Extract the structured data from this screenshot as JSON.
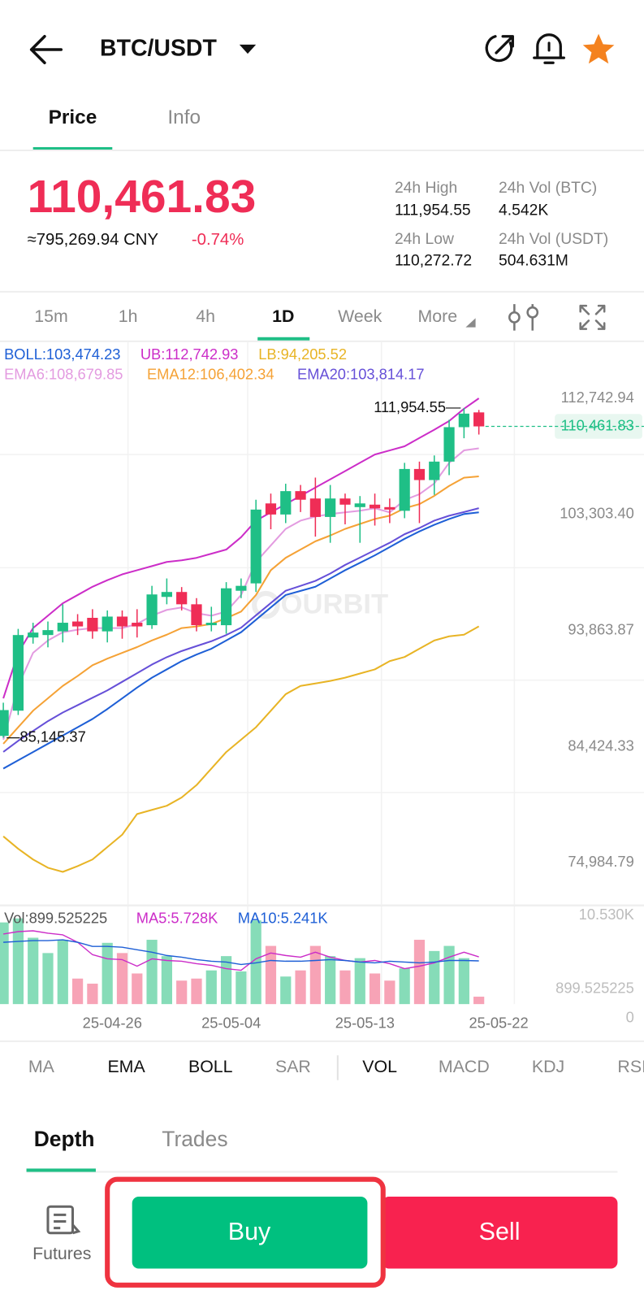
{
  "header": {
    "symbol": "BTC/USDT"
  },
  "tabs": [
    "Price",
    "Info"
  ],
  "ticker": {
    "price": "110,461.83",
    "cny": "≈795,269.94 CNY",
    "change": "-0.74%",
    "stats": [
      {
        "label": "24h High",
        "value": "111,954.55"
      },
      {
        "label": "24h Vol (BTC)",
        "value": "4.542K"
      },
      {
        "label": "24h Low",
        "value": "110,272.72"
      },
      {
        "label": "24h Vol (USDT)",
        "value": "504.631M"
      }
    ]
  },
  "timeframes": [
    "15m",
    "1h",
    "4h",
    "1D",
    "Week",
    "More"
  ],
  "watermark": "OURBIT",
  "chart_data": [
    {
      "type": "candlestick",
      "open": [
        85300,
        87350,
        93300,
        93500,
        93800,
        94600,
        94900,
        93800,
        95000,
        94500,
        94300,
        96600,
        97000,
        96000,
        94300,
        94300,
        97100,
        97700,
        104200,
        103300,
        105200,
        104600,
        103100,
        104600,
        103900,
        104100,
        103900,
        103600,
        107000,
        106100,
        107600,
        110400,
        111600,
        null
      ],
      "high": [
        88000,
        94000,
        94500,
        94600,
        96000,
        95200,
        95600,
        95500,
        95500,
        95600,
        97500,
        98100,
        97400,
        96500,
        95800,
        97800,
        98100,
        104500,
        105000,
        105800,
        105700,
        106300,
        105700,
        105000,
        104800,
        105000,
        104600,
        107500,
        107600,
        108100,
        111000,
        111954.55,
        111800,
        null
      ],
      "low": [
        85145.37,
        87000,
        92800,
        92500,
        92900,
        93500,
        93200,
        92900,
        93200,
        93300,
        94000,
        96000,
        95500,
        93800,
        93800,
        93600,
        96500,
        97000,
        102100,
        102600,
        103500,
        101500,
        101000,
        102500,
        101000,
        102400,
        102600,
        103000,
        102600,
        104900,
        106500,
        109500,
        109800,
        null
      ],
      "close": [
        87400,
        93500,
        93700,
        93900,
        94500,
        94200,
        93800,
        95000,
        94200,
        94200,
        96800,
        97000,
        96000,
        94300,
        94500,
        97300,
        97500,
        103700,
        103300,
        105200,
        104500,
        103100,
        104600,
        104100,
        104200,
        103800,
        103700,
        107000,
        106100,
        107600,
        110400,
        111500,
        110461.83,
        null
      ],
      "up_color": "#1fbf86",
      "down_color": "#ef2d56",
      "series": [
        {
          "name": "BOLL:103,474.23",
          "color": "#1e5fd6",
          "values": [
            82646,
            83318,
            83990,
            84661,
            85333,
            86005,
            86677,
            87483,
            88357,
            89230,
            90036,
            90708,
            91380,
            91917,
            92387,
            93059,
            93731,
            94739,
            95746,
            96754,
            97090,
            97426,
            98098,
            98770,
            99374,
            99979,
            100651,
            101322,
            101927,
            102465,
            102935,
            103340,
            103474.23,
            null
          ]
        },
        {
          "name": "UB:112,742.93",
          "color": "#cc2dc8",
          "values": [
            88357,
            92052,
            94067,
            95075,
            96082,
            96754,
            97426,
            97963,
            98434,
            98770,
            99105,
            99441,
            99576,
            99777,
            100113,
            100449,
            101457,
            102800,
            103472,
            104144,
            104816,
            105488,
            106159,
            106831,
            107503,
            108175,
            108511,
            108847,
            109518,
            110190,
            110900,
            111900,
            112742.93,
            null
          ]
        },
        {
          "name": "LB:94,205.52",
          "color": "#e8b425",
          "values": [
            77138,
            76130,
            75257,
            74585,
            74249,
            74719,
            75257,
            76264,
            77272,
            78951,
            79287,
            79623,
            80295,
            81303,
            82646,
            83990,
            84998,
            86005,
            87349,
            88693,
            89364,
            89566,
            89767,
            90036,
            90372,
            90708,
            91380,
            91716,
            92387,
            93059,
            93395,
            93530,
            94205.52,
            null
          ]
        },
        {
          "name": "EMA6:108,679.85",
          "color": "#e39be0",
          "values": [
            84998,
            89364,
            92051,
            93059,
            93731,
            93932,
            94066,
            94066,
            94066,
            94403,
            95074,
            95545,
            95746,
            95276,
            95074,
            95410,
            96754,
            99441,
            100785,
            102128,
            102800,
            103136,
            103337,
            103471,
            103606,
            103808,
            103471,
            104480,
            104950,
            105823,
            107503,
            108511,
            108679.85,
            null
          ]
        },
        {
          "name": "EMA12:106,402.34",
          "color": "#f5a236",
          "values": [
            84661,
            86005,
            87349,
            88357,
            89364,
            90170,
            91044,
            91580,
            92051,
            92521,
            93059,
            93529,
            94066,
            94201,
            94403,
            94873,
            95410,
            96754,
            98770,
            99777,
            100449,
            101121,
            101591,
            102128,
            102532,
            102935,
            103204,
            103808,
            104144,
            104815,
            105621,
            106293,
            106402.34,
            null
          ]
        },
        {
          "name": "EMA20:103,814.17",
          "color": "#6650d8",
          "values": [
            84000,
            84900,
            85700,
            86500,
            87200,
            87800,
            88400,
            89000,
            89700,
            90400,
            91100,
            91700,
            92200,
            92600,
            93000,
            93500,
            94100,
            95100,
            96100,
            97100,
            97500,
            97900,
            98500,
            99200,
            99800,
            100400,
            101000,
            101700,
            102200,
            102800,
            103200,
            103500,
            103814.17,
            null
          ]
        }
      ],
      "ylim": [
        71559,
        117379
      ],
      "yticks": [
        {
          "value": 112742.94,
          "label": "112,742.94"
        },
        {
          "value": 103303.4,
          "label": "103,303.40"
        },
        {
          "value": 93863.87,
          "label": "93,863.87"
        },
        {
          "value": 84424.33,
          "label": "84,424.33"
        },
        {
          "value": 74984.79,
          "label": "74,984.79"
        }
      ],
      "high_label": {
        "value": 111954.55,
        "label": "111,954.55"
      },
      "low_label": {
        "value": 85145.37,
        "label": "85,145.37"
      },
      "last_price": {
        "value": 110461.83,
        "label": "110,461.83"
      }
    },
    {
      "type": "bar",
      "title": "Vol:899.525225",
      "categories": [
        null,
        null,
        null,
        null,
        null,
        null,
        null,
        "25-04-26",
        null,
        null,
        null,
        null,
        null,
        null,
        null,
        "25-05-04",
        null,
        null,
        null,
        null,
        null,
        null,
        null,
        null,
        "25-05-13",
        null,
        null,
        null,
        null,
        null,
        null,
        null,
        null,
        "25-05-22"
      ],
      "values": [
        9912,
        10400,
        8054,
        6195,
        7806,
        3098,
        2478,
        7434,
        6195,
        3717,
        7806,
        5823,
        2850,
        3098,
        4089,
        5823,
        3965,
        10160,
        7062,
        3345,
        4089,
        7062,
        5823,
        4089,
        5576,
        3717,
        2850,
        4337,
        7806,
        6443,
        7062,
        5576,
        899.525225,
        null
      ],
      "up_color": "#86dcb8",
      "down_color": "#f7a3b6",
      "series": [
        {
          "name": "MA5:5.728K",
          "color": "#cc2dc8",
          "values": [
            8500,
            8800,
            8900,
            8600,
            8400,
            7500,
            6000,
            5500,
            5400,
            4600,
            5500,
            5300,
            5200,
            4900,
            4700,
            4300,
            4100,
            5500,
            6200,
            5900,
            5700,
            6300,
            5700,
            5300,
            5100,
            5300,
            4900,
            4300,
            4600,
            5000,
            5700,
            6300,
            5728,
            null
          ]
        },
        {
          "name": "MA10:5.241K",
          "color": "#1e5fd6",
          "values": [
            7500,
            7600,
            7700,
            7700,
            7800,
            7500,
            7000,
            7000,
            6900,
            6600,
            6300,
            5900,
            5700,
            5400,
            5200,
            5100,
            4800,
            5000,
            5300,
            5200,
            5200,
            5300,
            5400,
            5300,
            5100,
            5000,
            5200,
            5100,
            5000,
            5100,
            5300,
            5300,
            5241,
            null
          ]
        }
      ],
      "ylim": [
        0,
        10530
      ],
      "yticks": [
        {
          "value": 10530,
          "label": "10.530K"
        },
        0
      ]
    }
  ],
  "indicators": [
    "MA",
    "EMA",
    "BOLL",
    "SAR",
    "VOL",
    "MACD",
    "KDJ",
    "RSI"
  ],
  "book_tabs": [
    "Depth",
    "Trades"
  ],
  "actions": {
    "futures": "Futures",
    "buy": "Buy",
    "sell": "Sell"
  }
}
